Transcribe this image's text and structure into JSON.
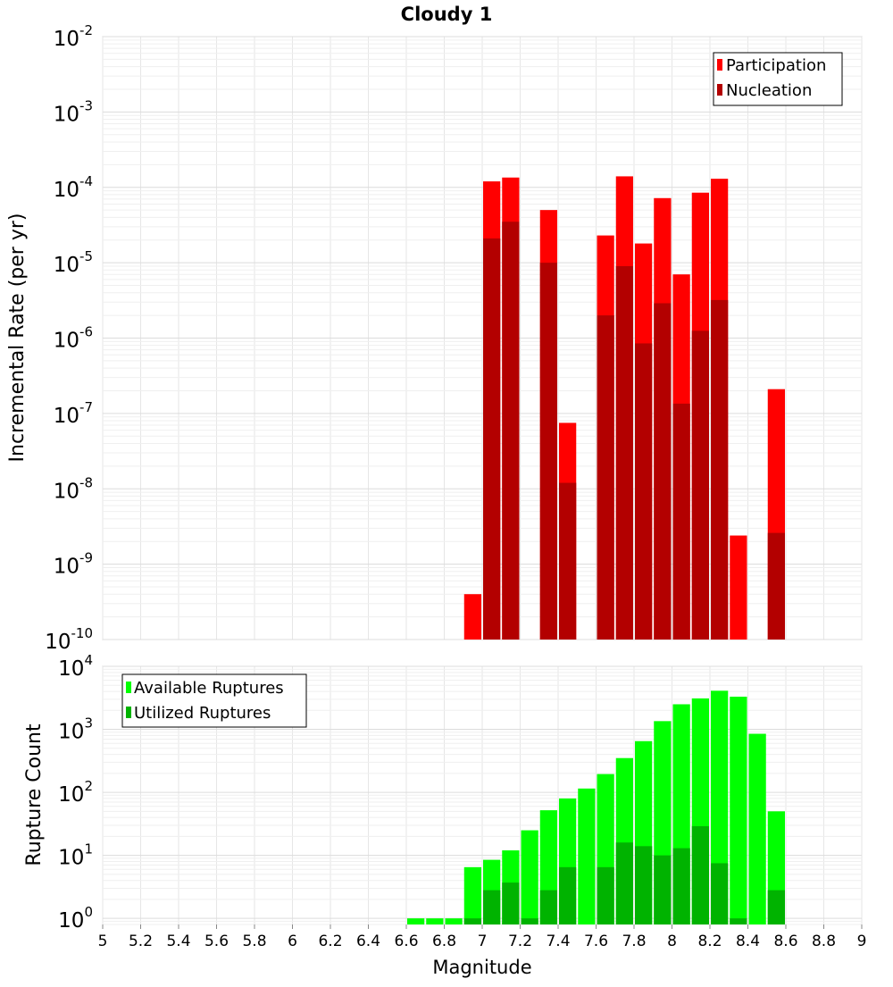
{
  "chart_data": [
    {
      "type": "bar",
      "title": "Cloudy 1",
      "ylabel": "Incremental Rate (per yr)",
      "xlabel": "",
      "y_scale": "log",
      "ylim": [
        1e-10,
        0.01
      ],
      "xlim": [
        5,
        9
      ],
      "bar_width": 0.1,
      "grid": true,
      "legend_position": "top-right",
      "x": [
        6.95,
        7.05,
        7.15,
        7.35,
        7.45,
        7.65,
        7.75,
        7.85,
        7.95,
        8.05,
        8.15,
        8.25,
        8.35,
        8.55
      ],
      "series": [
        {
          "name": "Participation",
          "color": "#ff0000",
          "values": [
            4e-10,
            0.00012,
            0.000135,
            5e-05,
            7.5e-08,
            2.3e-05,
            0.00014,
            1.8e-05,
            7.2e-05,
            7e-06,
            8.5e-05,
            0.00013,
            2.4e-09,
            2.1e-07
          ]
        },
        {
          "name": "Nucleation",
          "color": "#b30000",
          "values": [
            null,
            2.1e-05,
            3.5e-05,
            1e-05,
            1.2e-08,
            2e-06,
            9e-06,
            8.5e-07,
            2.9e-06,
            1.35e-07,
            1.25e-06,
            3.2e-06,
            null,
            2.6e-09
          ]
        }
      ]
    },
    {
      "type": "bar",
      "title": "",
      "ylabel": "Rupture Count",
      "xlabel": "Magnitude",
      "y_scale": "log",
      "ylim": [
        0.8,
        10000
      ],
      "xlim": [
        5,
        9
      ],
      "bar_width": 0.1,
      "grid": true,
      "legend_position": "top-left",
      "x": [
        6.65,
        6.75,
        6.85,
        6.95,
        7.05,
        7.15,
        7.25,
        7.35,
        7.45,
        7.55,
        7.65,
        7.75,
        7.85,
        7.95,
        8.05,
        8.15,
        8.25,
        8.35,
        8.45,
        8.55
      ],
      "series": [
        {
          "name": "Available Ruptures",
          "color": "#00ff00",
          "values": [
            1,
            1,
            1,
            6.5,
            8.5,
            12,
            25,
            52,
            80,
            115,
            195,
            350,
            650,
            1350,
            2500,
            3100,
            4100,
            3300,
            850,
            50
          ]
        },
        {
          "name": "Utilized Ruptures",
          "color": "#00b300",
          "values": [
            null,
            null,
            null,
            1,
            2.8,
            3.7,
            1,
            2.8,
            6.5,
            null,
            6.5,
            16,
            14,
            10,
            13,
            29,
            7.5,
            1,
            null,
            2.8
          ]
        }
      ]
    }
  ],
  "x_ticks": [
    "5",
    "5.2",
    "5.4",
    "5.6",
    "5.8",
    "6",
    "6.2",
    "6.4",
    "6.6",
    "6.8",
    "7",
    "7.2",
    "7.4",
    "7.6",
    "7.8",
    "8",
    "8.2",
    "8.4",
    "8.6",
    "8.8",
    "9"
  ],
  "top_y_ticks": [
    {
      "base": "10",
      "exp": "-2"
    },
    {
      "base": "10",
      "exp": "-3"
    },
    {
      "base": "10",
      "exp": "-4"
    },
    {
      "base": "10",
      "exp": "-5"
    },
    {
      "base": "10",
      "exp": "-6"
    },
    {
      "base": "10",
      "exp": "-7"
    },
    {
      "base": "10",
      "exp": "-8"
    },
    {
      "base": "10",
      "exp": "-9"
    },
    {
      "base": "10",
      "exp": "-10"
    }
  ],
  "bottom_y_ticks": [
    {
      "base": "10",
      "exp": "4"
    },
    {
      "base": "10",
      "exp": "3"
    },
    {
      "base": "10",
      "exp": "2"
    },
    {
      "base": "10",
      "exp": "1"
    },
    {
      "base": "10",
      "exp": "0"
    }
  ]
}
